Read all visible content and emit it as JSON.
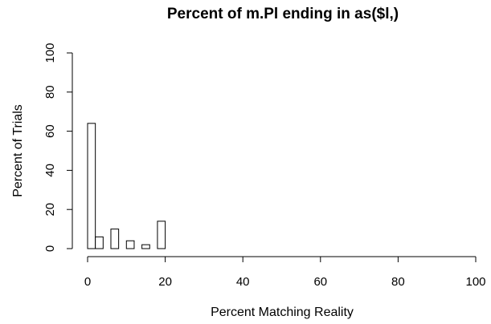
{
  "chart_data": {
    "type": "bar",
    "title": "Percent of m.Pl ending in as($l,)",
    "xlabel": "Percent Matching Reality",
    "ylabel": "Percent of Trials",
    "xlim": [
      0,
      100
    ],
    "ylim": [
      0,
      100
    ],
    "xticks": [
      0,
      20,
      40,
      60,
      80,
      100
    ],
    "yticks": [
      0,
      20,
      40,
      60,
      80,
      100
    ],
    "bin_width": 2,
    "bins": [
      {
        "x0": 0,
        "x1": 2,
        "value": 64
      },
      {
        "x0": 2,
        "x1": 4,
        "value": 6
      },
      {
        "x0": 4,
        "x1": 6,
        "value": 0
      },
      {
        "x0": 6,
        "x1": 8,
        "value": 10
      },
      {
        "x0": 8,
        "x1": 10,
        "value": 0
      },
      {
        "x0": 10,
        "x1": 12,
        "value": 4
      },
      {
        "x0": 12,
        "x1": 14,
        "value": 0
      },
      {
        "x0": 14,
        "x1": 16,
        "value": 2
      },
      {
        "x0": 16,
        "x1": 18,
        "value": 0
      },
      {
        "x0": 18,
        "x1": 20,
        "value": 14
      }
    ],
    "grid": false,
    "bar_fill": "#ffffff",
    "bar_stroke": "#000000"
  }
}
